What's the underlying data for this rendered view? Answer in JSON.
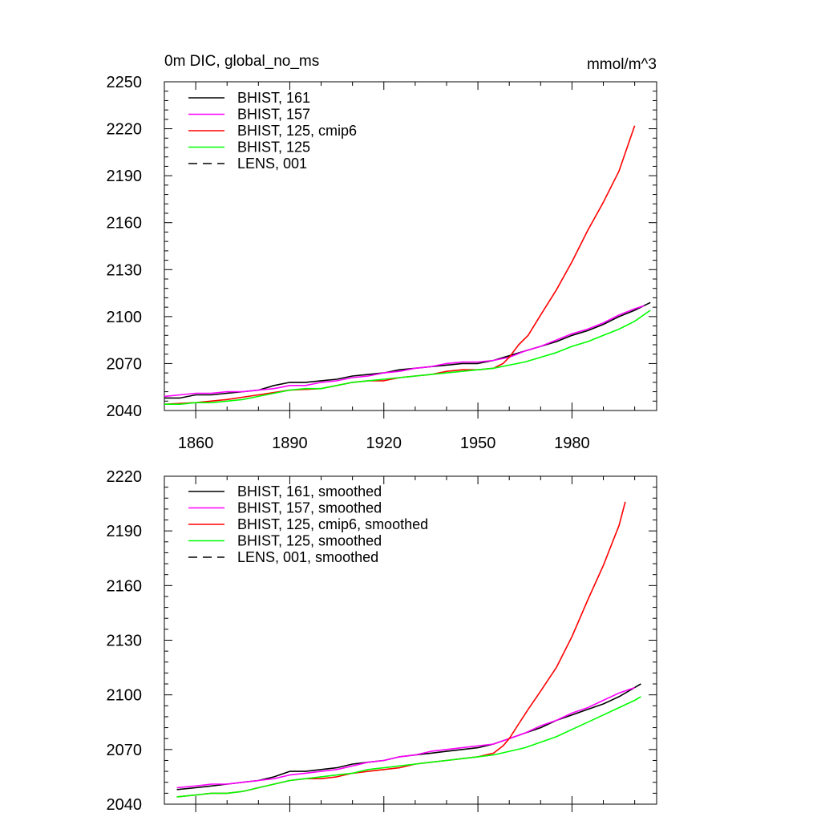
{
  "chart_data": [
    {
      "type": "line",
      "title": "0m DIC, global_no_ms",
      "units": "mmol/m^3",
      "xlim": [
        1850,
        2007
      ],
      "ylim": [
        2040,
        2250
      ],
      "yticks": [
        2040,
        2070,
        2100,
        2130,
        2160,
        2190,
        2220,
        2250
      ],
      "xticks": [
        1860,
        1890,
        1920,
        1950,
        1980
      ],
      "show_xtick_labels": true,
      "legend_position": "top-left",
      "series": [
        {
          "name": "BHIST, 161",
          "color": "#000000",
          "dash": "solid",
          "x": [
            1850,
            1855,
            1860,
            1865,
            1870,
            1875,
            1880,
            1885,
            1890,
            1895,
            1900,
            1905,
            1910,
            1915,
            1920,
            1925,
            1930,
            1935,
            1940,
            1945,
            1950,
            1955,
            1960,
            1965,
            1970,
            1975,
            1980,
            1985,
            1990,
            1995,
            2000,
            2005
          ],
          "y": [
            2048,
            2048,
            2050,
            2050,
            2051,
            2052,
            2053,
            2056,
            2058,
            2058,
            2059,
            2060,
            2062,
            2063,
            2064,
            2066,
            2067,
            2068,
            2069,
            2070,
            2070,
            2072,
            2075,
            2078,
            2081,
            2084,
            2088,
            2091,
            2095,
            2100,
            2104,
            2109
          ]
        },
        {
          "name": "BHIST, 157",
          "color": "#ff00ff",
          "dash": "solid",
          "x": [
            1850,
            1855,
            1860,
            1865,
            1870,
            1875,
            1880,
            1885,
            1890,
            1895,
            1900,
            1905,
            1910,
            1915,
            1920,
            1925,
            1930,
            1935,
            1940,
            1945,
            1950,
            1955,
            1960,
            1965,
            1970,
            1975,
            1980,
            1985,
            1990,
            1995,
            2000,
            2003
          ],
          "y": [
            2049,
            2050,
            2051,
            2051,
            2052,
            2052,
            2053,
            2054,
            2056,
            2056,
            2058,
            2059,
            2061,
            2062,
            2064,
            2065,
            2067,
            2068,
            2070,
            2071,
            2071,
            2072,
            2074,
            2078,
            2081,
            2085,
            2089,
            2092,
            2096,
            2101,
            2105,
            2107
          ]
        },
        {
          "name": "BHIST, 125, cmip6",
          "color": "#ff0000",
          "dash": "solid",
          "x": [
            1850,
            1860,
            1870,
            1880,
            1890,
            1900,
            1905,
            1910,
            1915,
            1920,
            1925,
            1930,
            1935,
            1940,
            1945,
            1950,
            1955,
            1958,
            1960,
            1963,
            1966,
            1970,
            1975,
            1980,
            1985,
            1990,
            1995,
            2000
          ],
          "y": [
            2044,
            2045,
            2047,
            2050,
            2053,
            2054,
            2056,
            2058,
            2059,
            2059,
            2061,
            2062,
            2063,
            2065,
            2066,
            2066,
            2067,
            2070,
            2074,
            2082,
            2088,
            2101,
            2117,
            2135,
            2155,
            2173,
            2193,
            2222
          ]
        },
        {
          "name": "BHIST, 125",
          "color": "#00ff00",
          "dash": "solid",
          "x": [
            1850,
            1855,
            1860,
            1865,
            1870,
            1875,
            1880,
            1885,
            1890,
            1895,
            1900,
            1905,
            1910,
            1915,
            1920,
            1925,
            1930,
            1935,
            1940,
            1945,
            1950,
            1955,
            1960,
            1965,
            1970,
            1975,
            1980,
            1985,
            1990,
            1995,
            2000,
            2005
          ],
          "y": [
            2044,
            2044,
            2045,
            2045,
            2046,
            2047,
            2049,
            2051,
            2053,
            2054,
            2054,
            2056,
            2058,
            2059,
            2060,
            2061,
            2062,
            2063,
            2064,
            2065,
            2066,
            2067,
            2069,
            2071,
            2074,
            2077,
            2081,
            2084,
            2088,
            2092,
            2097,
            2104
          ]
        },
        {
          "name": "LENS, 001",
          "color": "#000000",
          "dash": "dashed",
          "x": [],
          "y": []
        }
      ]
    },
    {
      "type": "line",
      "title": "",
      "units": "",
      "xlim": [
        1850,
        2007
      ],
      "ylim": [
        2040,
        2220
      ],
      "yticks": [
        2040,
        2070,
        2100,
        2130,
        2160,
        2190,
        2220
      ],
      "xticks": [
        1860,
        1890,
        1920,
        1950,
        1980
      ],
      "show_xtick_labels": false,
      "legend_position": "top-left",
      "series": [
        {
          "name": "BHIST, 161, smoothed",
          "color": "#000000",
          "dash": "solid",
          "x": [
            1854,
            1860,
            1865,
            1870,
            1875,
            1880,
            1885,
            1890,
            1895,
            1900,
            1905,
            1910,
            1915,
            1920,
            1925,
            1930,
            1935,
            1940,
            1945,
            1950,
            1955,
            1960,
            1965,
            1970,
            1975,
            1980,
            1985,
            1990,
            1995,
            2000,
            2002
          ],
          "y": [
            2048,
            2049,
            2050,
            2051,
            2052,
            2053,
            2055,
            2058,
            2058,
            2059,
            2060,
            2062,
            2063,
            2064,
            2066,
            2067,
            2068,
            2069,
            2070,
            2071,
            2073,
            2076,
            2079,
            2082,
            2086,
            2089,
            2092,
            2095,
            2099,
            2104,
            2106
          ]
        },
        {
          "name": "BHIST, 157, smoothed",
          "color": "#ff00ff",
          "dash": "solid",
          "x": [
            1854,
            1860,
            1865,
            1870,
            1875,
            1880,
            1885,
            1890,
            1895,
            1900,
            1905,
            1910,
            1915,
            1920,
            1925,
            1930,
            1935,
            1940,
            1945,
            1950,
            1955,
            1960,
            1965,
            1970,
            1975,
            1980,
            1985,
            1990,
            1995,
            2000
          ],
          "y": [
            2049,
            2050,
            2051,
            2051,
            2052,
            2053,
            2054,
            2056,
            2057,
            2058,
            2059,
            2061,
            2063,
            2064,
            2066,
            2067,
            2069,
            2070,
            2071,
            2072,
            2073,
            2076,
            2079,
            2083,
            2086,
            2090,
            2093,
            2097,
            2101,
            2104
          ]
        },
        {
          "name": "BHIST, 125, cmip6, smoothed",
          "color": "#ff0000",
          "dash": "solid",
          "x": [
            1854,
            1860,
            1865,
            1870,
            1875,
            1880,
            1885,
            1890,
            1895,
            1900,
            1905,
            1910,
            1915,
            1920,
            1925,
            1930,
            1935,
            1940,
            1945,
            1950,
            1955,
            1958,
            1960,
            1963,
            1966,
            1970,
            1975,
            1980,
            1985,
            1990,
            1995,
            1997
          ],
          "y": [
            2044,
            2045,
            2046,
            2046,
            2047,
            2049,
            2051,
            2053,
            2054,
            2054,
            2055,
            2057,
            2058,
            2059,
            2060,
            2062,
            2063,
            2064,
            2065,
            2066,
            2068,
            2072,
            2076,
            2084,
            2092,
            2102,
            2115,
            2132,
            2152,
            2171,
            2193,
            2206
          ]
        },
        {
          "name": "BHIST, 125, smoothed",
          "color": "#00ff00",
          "dash": "solid",
          "x": [
            1854,
            1860,
            1865,
            1870,
            1875,
            1880,
            1885,
            1890,
            1895,
            1900,
            1905,
            1910,
            1915,
            1920,
            1925,
            1930,
            1935,
            1940,
            1945,
            1950,
            1955,
            1960,
            1965,
            1970,
            1975,
            1980,
            1985,
            1990,
            1995,
            2000,
            2002
          ],
          "y": [
            2044,
            2045,
            2046,
            2046,
            2047,
            2049,
            2051,
            2053,
            2054,
            2055,
            2056,
            2057,
            2059,
            2060,
            2061,
            2062,
            2063,
            2064,
            2065,
            2066,
            2067,
            2069,
            2071,
            2074,
            2077,
            2081,
            2085,
            2089,
            2093,
            2097,
            2099
          ]
        },
        {
          "name": "LENS, 001, smoothed",
          "color": "#000000",
          "dash": "dashed",
          "x": [],
          "y": []
        }
      ]
    }
  ]
}
